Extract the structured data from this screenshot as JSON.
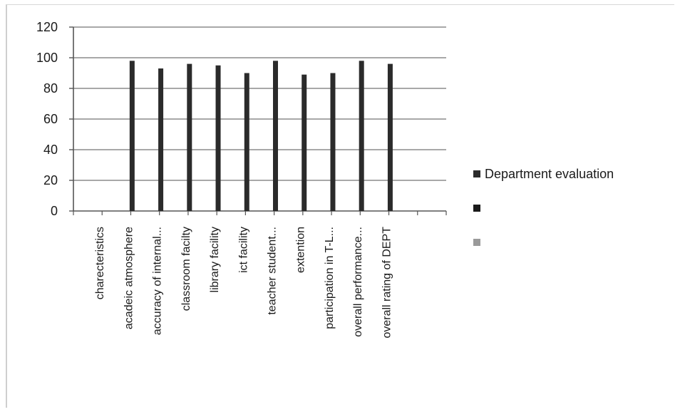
{
  "chart_data": {
    "type": "bar",
    "title": "",
    "xlabel": "",
    "ylabel": "",
    "ylim": [
      0,
      120
    ],
    "yticks": [
      0,
      20,
      40,
      60,
      80,
      100,
      120
    ],
    "grid": true,
    "legend_position": "right",
    "categories": [
      "charecteristics",
      "acadeic atmosphere",
      "accuracy of internal...",
      "classroom facilty",
      "library facility",
      "ict facility",
      "teacher student...",
      "extention",
      "participation in T-L...",
      "overall performance...",
      "overall rating of DEPT"
    ],
    "series": [
      {
        "name": "Department evaluation",
        "color": "#2b2b2b",
        "values": [
          0,
          98,
          93,
          96,
          95,
          90,
          98,
          89,
          90,
          98,
          96
        ]
      }
    ],
    "legend": [
      {
        "label": "Department evaluation",
        "color": "#2b2b2b"
      },
      {
        "label": "",
        "color": "#1a1a1a"
      },
      {
        "label": "",
        "color": "#9a9a9a"
      }
    ]
  }
}
